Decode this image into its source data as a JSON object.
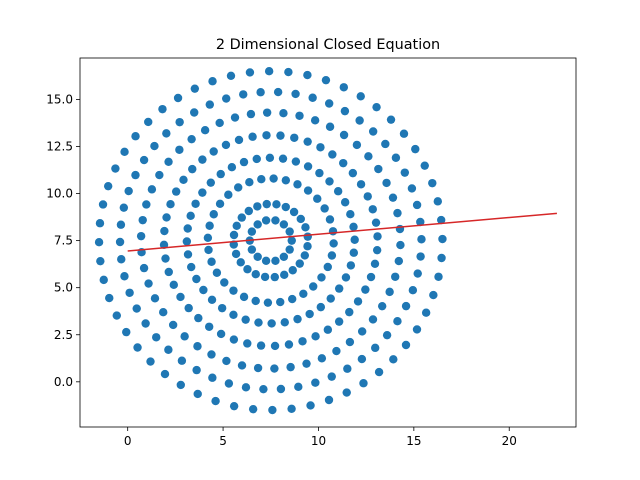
{
  "chart_data": {
    "type": "scatter",
    "title": "2 Dimensional Closed Equation",
    "xlabel": "",
    "ylabel": "",
    "xlim": [
      -2.5,
      23.5
    ],
    "ylim": [
      -2.4,
      17.2
    ],
    "xticks": [
      0,
      5,
      10,
      15,
      20
    ],
    "yticks": [
      0.0,
      2.5,
      5.0,
      7.5,
      10.0,
      12.5,
      15.0
    ],
    "xtick_labels": [
      "0",
      "5",
      "10",
      "15",
      "20"
    ],
    "ytick_labels": [
      "0.0",
      "2.5",
      "5.0",
      "7.5",
      "10.0",
      "12.5",
      "15.0"
    ],
    "grid": false,
    "colors": {
      "points": "#1f77b4",
      "fit_line": "#d62728"
    },
    "fit_line": {
      "x": [
        0.0,
        22.5
      ],
      "y": [
        6.95,
        8.95
      ]
    },
    "rings": [
      {
        "cx": 7.5,
        "cy": 7.5,
        "r": 1.1,
        "n": 14
      },
      {
        "cx": 7.5,
        "cy": 7.5,
        "r": 1.95,
        "n": 24
      },
      {
        "cx": 7.5,
        "cy": 7.5,
        "r": 3.3,
        "n": 32
      },
      {
        "cx": 7.5,
        "cy": 7.5,
        "r": 4.4,
        "n": 40
      },
      {
        "cx": 7.5,
        "cy": 7.5,
        "r": 5.6,
        "n": 48
      },
      {
        "cx": 7.5,
        "cy": 7.5,
        "r": 6.8,
        "n": 50
      },
      {
        "cx": 7.5,
        "cy": 7.5,
        "r": 7.9,
        "n": 54
      },
      {
        "cx": 7.5,
        "cy": 7.5,
        "r": 9.0,
        "n": 56
      }
    ]
  }
}
